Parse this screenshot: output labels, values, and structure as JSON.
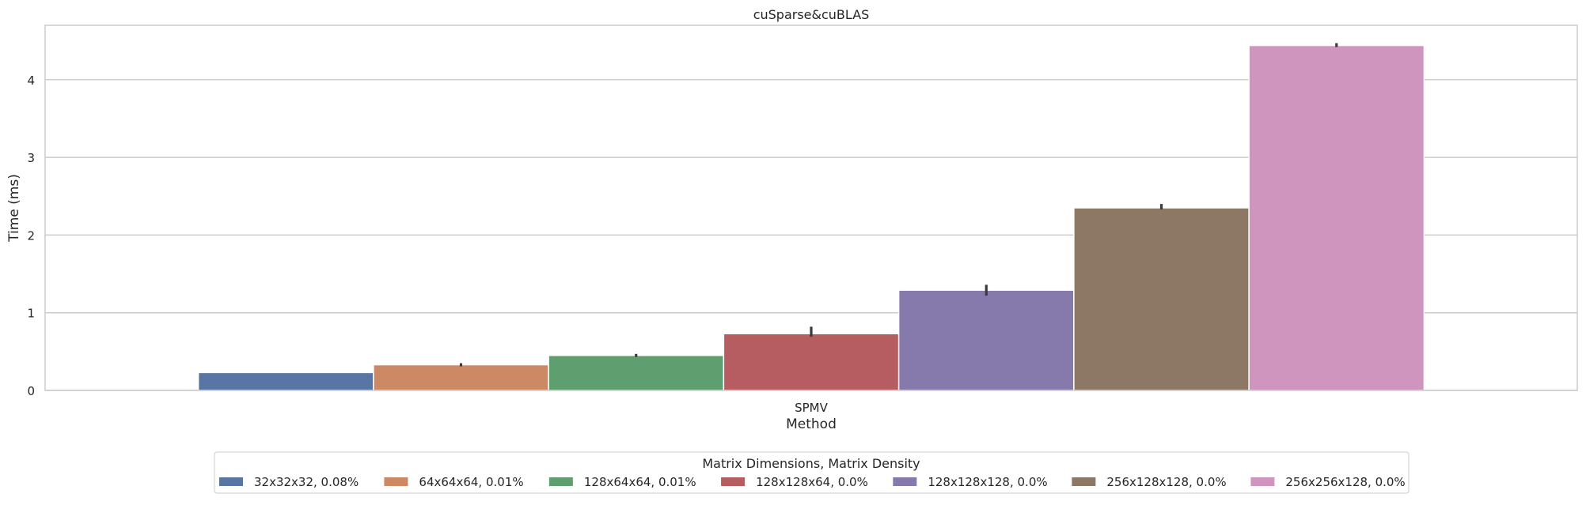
{
  "chart_data": {
    "type": "bar",
    "title": "cuSparse&cuBLAS",
    "xlabel": "Method",
    "ylabel": "Time (ms)",
    "categories": [
      "SPMV"
    ],
    "ylim": [
      0,
      4.7
    ],
    "yticks": [
      0,
      1,
      2,
      3,
      4
    ],
    "grid": true,
    "legend": {
      "title": "Matrix Dimensions, Matrix Density",
      "placement": "bottom-center"
    },
    "series": [
      {
        "name": "32x32x32, 0.08%",
        "values": [
          0.23
        ],
        "error": [
          0.0,
          0.0
        ],
        "color": "#5875a4"
      },
      {
        "name": "64x64x64, 0.01%",
        "values": [
          0.33
        ],
        "error": [
          0.31,
          0.35
        ],
        "color": "#cc8963"
      },
      {
        "name": "128x64x64, 0.01%",
        "values": [
          0.45
        ],
        "error": [
          0.43,
          0.47
        ],
        "color": "#5f9e6e"
      },
      {
        "name": "128x128x64, 0.0%",
        "values": [
          0.73
        ],
        "error": [
          0.69,
          0.82
        ],
        "color": "#b55d60"
      },
      {
        "name": "128x128x128, 0.0%",
        "values": [
          1.29
        ],
        "error": [
          1.22,
          1.36
        ],
        "color": "#857aab"
      },
      {
        "name": "256x128x128, 0.0%",
        "values": [
          2.35
        ],
        "error": [
          2.33,
          2.4
        ],
        "color": "#8d7866"
      },
      {
        "name": "256x256x128, 0.0%",
        "values": [
          4.44
        ],
        "error": [
          4.42,
          4.47
        ],
        "color": "#d095bf"
      }
    ]
  }
}
